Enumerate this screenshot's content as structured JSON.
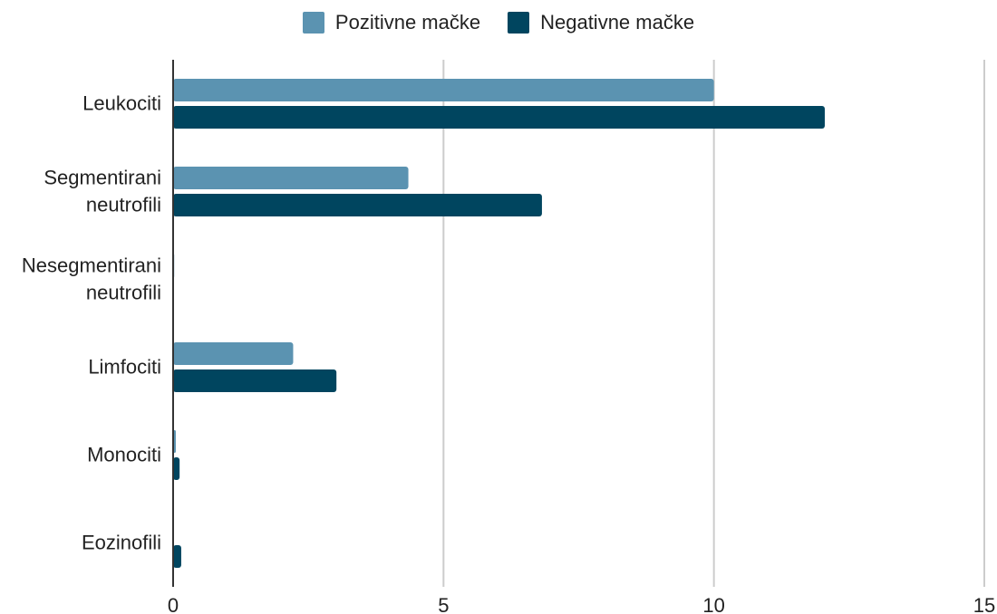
{
  "chart_data": {
    "type": "bar",
    "orientation": "horizontal",
    "title": "",
    "xlabel": "",
    "ylabel": "",
    "categories": [
      [
        "Leukociti"
      ],
      [
        "Segmentirani",
        "neutrofili"
      ],
      [
        "Nesegmentirani",
        "neutrofili"
      ],
      [
        "Limfociti"
      ],
      [
        "Monociti"
      ],
      [
        "Eozinofili"
      ]
    ],
    "series": [
      {
        "name": "Pozitivne mačke",
        "color": "#5b93b1",
        "values": [
          10.0,
          4.35,
          0.02,
          2.22,
          0.05,
          0.0
        ]
      },
      {
        "name": "Negativne mačke",
        "color": "#00455f",
        "values": [
          12.05,
          6.82,
          0.0,
          3.02,
          0.12,
          0.15
        ]
      }
    ],
    "xlim": [
      0,
      15
    ],
    "x_ticks": [
      0,
      5,
      10,
      15
    ],
    "grid": true,
    "legend_position": "top"
  }
}
